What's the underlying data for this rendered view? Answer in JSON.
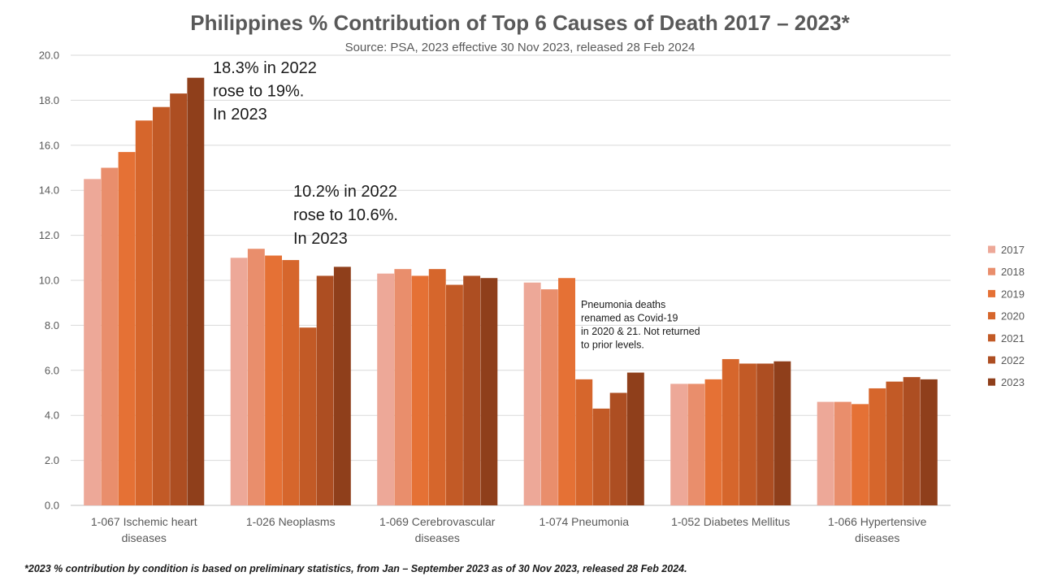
{
  "chart_data": {
    "type": "bar",
    "title": "Philippines % Contribution of Top 6 Causes of Death 2017 – 2023*",
    "subtitle": "Source: PSA, 2023 effective 30 Nov 2023, released 28 Feb 2024",
    "xlabel": "",
    "ylabel": "",
    "ylim": [
      0,
      20
    ],
    "yticks": [
      "0.0",
      "2.0",
      "4.0",
      "6.0",
      "8.0",
      "10.0",
      "12.0",
      "14.0",
      "16.0",
      "18.0",
      "20.0"
    ],
    "grid": true,
    "legend_position": "right",
    "categories": [
      [
        "1-067  Ischemic heart",
        "diseases"
      ],
      [
        "1-026  Neoplasms"
      ],
      [
        "1-069  Cerebrovascular",
        "diseases"
      ],
      [
        "1-074  Pneumonia"
      ],
      [
        "1-052  Diabetes Mellitus"
      ],
      [
        "1-066  Hypertensive",
        "diseases"
      ]
    ],
    "series": [
      {
        "name": "2017",
        "color": "#eda898",
        "values": [
          14.5,
          11.0,
          10.3,
          9.9,
          5.4,
          4.6
        ]
      },
      {
        "name": "2018",
        "color": "#e98e6c",
        "values": [
          15.0,
          11.4,
          10.5,
          9.6,
          5.4,
          4.6
        ]
      },
      {
        "name": "2019",
        "color": "#e57135",
        "values": [
          15.7,
          11.1,
          10.2,
          10.1,
          5.6,
          4.5
        ]
      },
      {
        "name": "2020",
        "color": "#d6662c",
        "values": [
          17.1,
          10.9,
          10.5,
          5.6,
          6.5,
          5.2
        ]
      },
      {
        "name": "2021",
        "color": "#c25a26",
        "values": [
          17.7,
          7.9,
          9.8,
          4.3,
          6.3,
          5.5
        ]
      },
      {
        "name": "2022",
        "color": "#ad4e22",
        "values": [
          18.3,
          10.2,
          10.2,
          5.0,
          6.3,
          5.7
        ]
      },
      {
        "name": "2023",
        "color": "#8f3f1b",
        "values": [
          19.0,
          10.6,
          10.1,
          5.9,
          6.4,
          5.6
        ]
      }
    ],
    "annotations": [
      {
        "lines": [
          "18.3% in 2022",
          "rose to 19%.",
          "In 2023"
        ],
        "size": "large"
      },
      {
        "lines": [
          "10.2% in 2022",
          "rose to 10.6%.",
          "In 2023"
        ],
        "size": "large"
      },
      {
        "lines": [
          "Pneumonia deaths",
          "renamed as  Covid-19",
          "in 2020 & 21. Not returned",
          "to prior levels."
        ],
        "size": "small"
      }
    ],
    "footnote": "*2023 %  contribution by condition is based on preliminary statistics, from Jan – September 2023 as of 30 Nov 2023, released  28 Feb 2024."
  }
}
